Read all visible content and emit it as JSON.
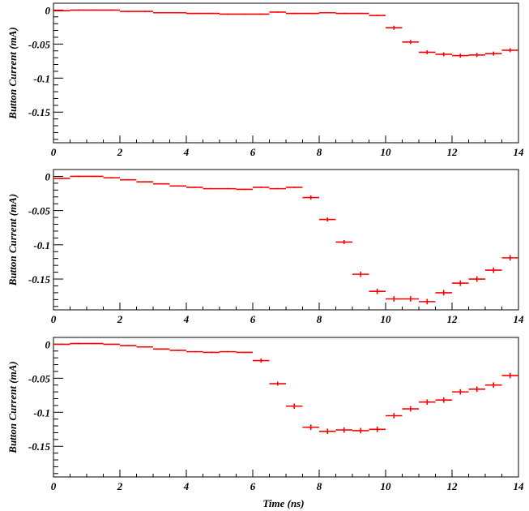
{
  "chart_data": [
    {
      "type": "errorbar-step",
      "xlabel": "",
      "ylabel": "Button Current (mA)",
      "xlim": [
        0,
        14
      ],
      "ylim": [
        -0.195,
        0.01
      ],
      "xticks": [
        "0",
        "2",
        "4",
        "6",
        "8",
        "10",
        "12",
        "14"
      ],
      "yticks": [
        "0",
        "-0.05",
        "-0.1",
        "-0.15"
      ],
      "grid": false,
      "series_color": "#ff0000",
      "bin_width": 0.5,
      "x": [
        0.25,
        0.75,
        1.25,
        1.75,
        2.25,
        2.75,
        3.25,
        3.75,
        4.25,
        4.75,
        5.25,
        5.75,
        6.25,
        6.75,
        7.25,
        7.75,
        8.25,
        8.75,
        9.25,
        9.75,
        10.25,
        10.75,
        11.25,
        11.75,
        12.25,
        12.75,
        13.25,
        13.75
      ],
      "values": [
        -0.001,
        0.0,
        0.0,
        0.0,
        -0.002,
        -0.002,
        -0.004,
        -0.004,
        -0.005,
        -0.005,
        -0.006,
        -0.006,
        -0.006,
        -0.003,
        -0.005,
        -0.005,
        -0.004,
        -0.005,
        -0.005,
        -0.008,
        -0.026,
        -0.047,
        -0.062,
        -0.065,
        -0.067,
        -0.066,
        -0.064,
        -0.059
      ],
      "yerr": [
        0.001,
        0.001,
        0.001,
        0.001,
        0.001,
        0.001,
        0.001,
        0.001,
        0.001,
        0.001,
        0.001,
        0.001,
        0.001,
        0.001,
        0.001,
        0.001,
        0.001,
        0.001,
        0.001,
        0.001,
        0.003,
        0.003,
        0.003,
        0.003,
        0.003,
        0.003,
        0.003,
        0.003
      ]
    },
    {
      "type": "errorbar-step",
      "xlabel": "",
      "ylabel": "Button Current (mA)",
      "xlim": [
        0,
        14
      ],
      "ylim": [
        -0.195,
        0.01
      ],
      "xticks": [
        "0",
        "2",
        "4",
        "6",
        "8",
        "10",
        "12",
        "14"
      ],
      "yticks": [
        "0",
        "-0.05",
        "-0.1",
        "-0.15"
      ],
      "grid": false,
      "series_color": "#ff0000",
      "bin_width": 0.5,
      "x": [
        0.25,
        0.75,
        1.25,
        1.75,
        2.25,
        2.75,
        3.25,
        3.75,
        4.25,
        4.75,
        5.25,
        5.75,
        6.25,
        6.75,
        7.25,
        7.75,
        8.25,
        8.75,
        9.25,
        9.75,
        10.25,
        10.75,
        11.25,
        11.75,
        12.25,
        12.75,
        13.25,
        13.75
      ],
      "values": [
        -0.003,
        0.0,
        0.0,
        -0.002,
        -0.005,
        -0.008,
        -0.011,
        -0.014,
        -0.016,
        -0.018,
        -0.018,
        -0.019,
        -0.016,
        -0.018,
        -0.016,
        -0.031,
        -0.063,
        -0.096,
        -0.143,
        -0.168,
        -0.179,
        -0.179,
        -0.183,
        -0.17,
        -0.156,
        -0.15,
        -0.137,
        -0.119
      ],
      "yerr": [
        0.001,
        0.001,
        0.001,
        0.001,
        0.001,
        0.001,
        0.001,
        0.001,
        0.001,
        0.001,
        0.001,
        0.001,
        0.001,
        0.001,
        0.001,
        0.003,
        0.003,
        0.003,
        0.004,
        0.004,
        0.004,
        0.004,
        0.004,
        0.004,
        0.004,
        0.004,
        0.004,
        0.004
      ]
    },
    {
      "type": "errorbar-step",
      "xlabel": "Time (ns)",
      "ylabel": "Button Current (mA)",
      "xlim": [
        0,
        14
      ],
      "ylim": [
        -0.195,
        0.01
      ],
      "xticks": [
        "0",
        "2",
        "4",
        "6",
        "8",
        "10",
        "12",
        "14"
      ],
      "yticks": [
        "0",
        "-0.05",
        "-0.1",
        "-0.15"
      ],
      "grid": false,
      "series_color": "#ff0000",
      "bin_width": 0.5,
      "x": [
        0.25,
        0.75,
        1.25,
        1.75,
        2.25,
        2.75,
        3.25,
        3.75,
        4.25,
        4.75,
        5.25,
        5.75,
        6.25,
        6.75,
        7.25,
        7.75,
        8.25,
        8.75,
        9.25,
        9.75,
        10.25,
        10.75,
        11.25,
        11.75,
        12.25,
        12.75,
        13.25,
        13.75
      ],
      "values": [
        0.0,
        0.001,
        0.001,
        0.0,
        -0.002,
        -0.004,
        -0.007,
        -0.009,
        -0.011,
        -0.012,
        -0.011,
        -0.012,
        -0.024,
        -0.058,
        -0.091,
        -0.122,
        -0.128,
        -0.126,
        -0.127,
        -0.125,
        -0.105,
        -0.095,
        -0.085,
        -0.082,
        -0.07,
        -0.066,
        -0.06,
        -0.046
      ],
      "yerr": [
        0.001,
        0.001,
        0.001,
        0.001,
        0.001,
        0.001,
        0.001,
        0.001,
        0.001,
        0.001,
        0.001,
        0.001,
        0.003,
        0.003,
        0.004,
        0.004,
        0.004,
        0.004,
        0.004,
        0.004,
        0.004,
        0.004,
        0.004,
        0.004,
        0.004,
        0.004,
        0.004,
        0.004
      ]
    }
  ]
}
